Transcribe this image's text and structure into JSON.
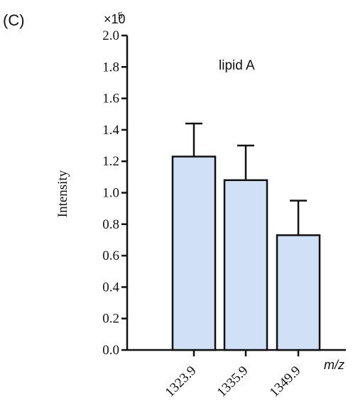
{
  "panel_label": "(C)",
  "chart_data": {
    "type": "bar",
    "title": "lipid A",
    "multiplier_label": "×10",
    "multiplier_exponent": "5",
    "ylabel": "Intensity",
    "xlabel": "m/z",
    "ylim": [
      0,
      2.0
    ],
    "yticks": [
      "0.0",
      "0.2",
      "0.4",
      "0.6",
      "0.8",
      "1.0",
      "1.2",
      "1.4",
      "1.6",
      "1.8",
      "2.0"
    ],
    "categories": [
      "1323.9",
      "1335.9",
      "1349.9"
    ],
    "values": [
      1.23,
      1.08,
      0.73
    ],
    "error_upper": [
      1.44,
      1.3,
      0.95
    ],
    "bar_color": "#cfe0f7",
    "edge_color": "#111111"
  }
}
